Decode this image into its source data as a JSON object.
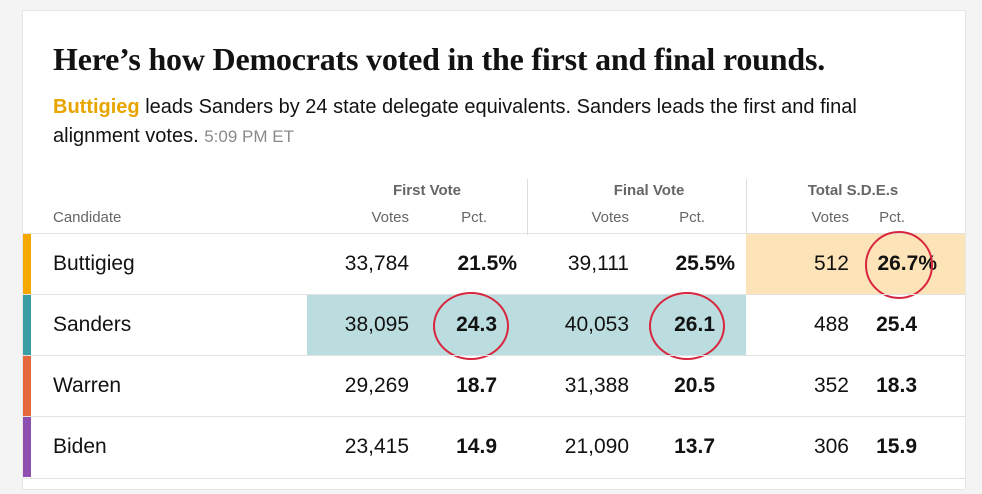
{
  "headline": "Here’s how Democrats voted in the first and final rounds.",
  "summary": {
    "leader": "Buttigieg",
    "text": " leads Sanders by 24 state delegate equivalents. Sanders leads the first and final alignment votes. ",
    "time": "5:09 PM ET"
  },
  "columns": {
    "candidate": "Candidate",
    "first_vote": "First Vote",
    "final_vote": "Final Vote",
    "total_sdes": "Total S.D.E.s",
    "votes": "Votes",
    "pct": "Pct."
  },
  "rows": [
    {
      "name": "Buttigieg",
      "color": "#f5a800",
      "first_votes": "33,784",
      "first_pct": "21.5%",
      "final_votes": "39,111",
      "final_pct": "25.5%",
      "sde": "512",
      "sde_pct": "26.7%"
    },
    {
      "name": "Sanders",
      "color": "#3a9ca4",
      "first_votes": "38,095",
      "first_pct": "24.3",
      "final_votes": "40,053",
      "final_pct": "26.1",
      "sde": "488",
      "sde_pct": "25.4"
    },
    {
      "name": "Warren",
      "color": "#e5673c",
      "first_votes": "29,269",
      "first_pct": "18.7",
      "final_votes": "31,388",
      "final_pct": "20.5",
      "sde": "352",
      "sde_pct": "18.3"
    },
    {
      "name": "Biden",
      "color": "#8e4fb0",
      "first_votes": "23,415",
      "first_pct": "14.9",
      "final_votes": "21,090",
      "final_pct": "13.7",
      "sde": "306",
      "sde_pct": "15.9"
    }
  ],
  "colors": {
    "buttigieg_highlight": "#fde3b8",
    "sanders_highlight": "#bcdde0",
    "annotation_circle": "#d7263d"
  }
}
